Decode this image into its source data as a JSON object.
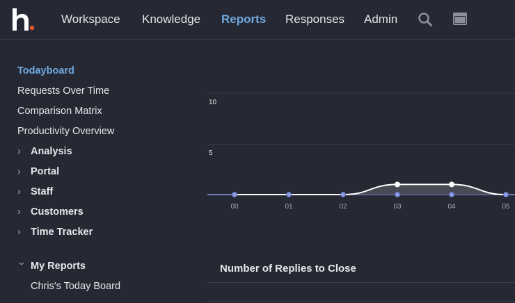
{
  "nav": {
    "items": [
      {
        "label": "Workspace",
        "active": false
      },
      {
        "label": "Knowledge",
        "active": false
      },
      {
        "label": "Reports",
        "active": true
      },
      {
        "label": "Responses",
        "active": false
      },
      {
        "label": "Admin",
        "active": false
      }
    ],
    "icons": [
      "search-icon",
      "window-icon"
    ]
  },
  "sidebar": {
    "links": [
      {
        "label": "Todayboard",
        "active": true
      },
      {
        "label": "Requests Over Time",
        "active": false
      },
      {
        "label": "Comparison Matrix",
        "active": false
      },
      {
        "label": "Productivity Overview",
        "active": false
      }
    ],
    "groups": [
      {
        "label": "Analysis",
        "expanded": false
      },
      {
        "label": "Portal",
        "expanded": false
      },
      {
        "label": "Staff",
        "expanded": false
      },
      {
        "label": "Customers",
        "expanded": false
      },
      {
        "label": "Time Tracker",
        "expanded": false
      }
    ],
    "my_reports": {
      "label": "My Reports",
      "expanded": true,
      "items": [
        "Chris's Today Board"
      ]
    }
  },
  "chart_data": {
    "type": "area",
    "categories": [
      "00",
      "01",
      "02",
      "03",
      "04",
      "05"
    ],
    "series": [
      {
        "values": [
          0,
          0,
          0,
          1,
          1,
          0
        ],
        "color": "#ffffff"
      },
      {
        "values": [
          0,
          0,
          0,
          0,
          0,
          0
        ],
        "color": "#8c9ee6"
      }
    ],
    "y_ticks": [
      "10",
      "5"
    ],
    "ylim": [
      0,
      10
    ],
    "grid": true
  },
  "section": {
    "title": "Number of Replies to Close"
  },
  "colors": {
    "background": "#262833",
    "accent": "#6fa9e0",
    "logo_dot": "#e8542c"
  }
}
